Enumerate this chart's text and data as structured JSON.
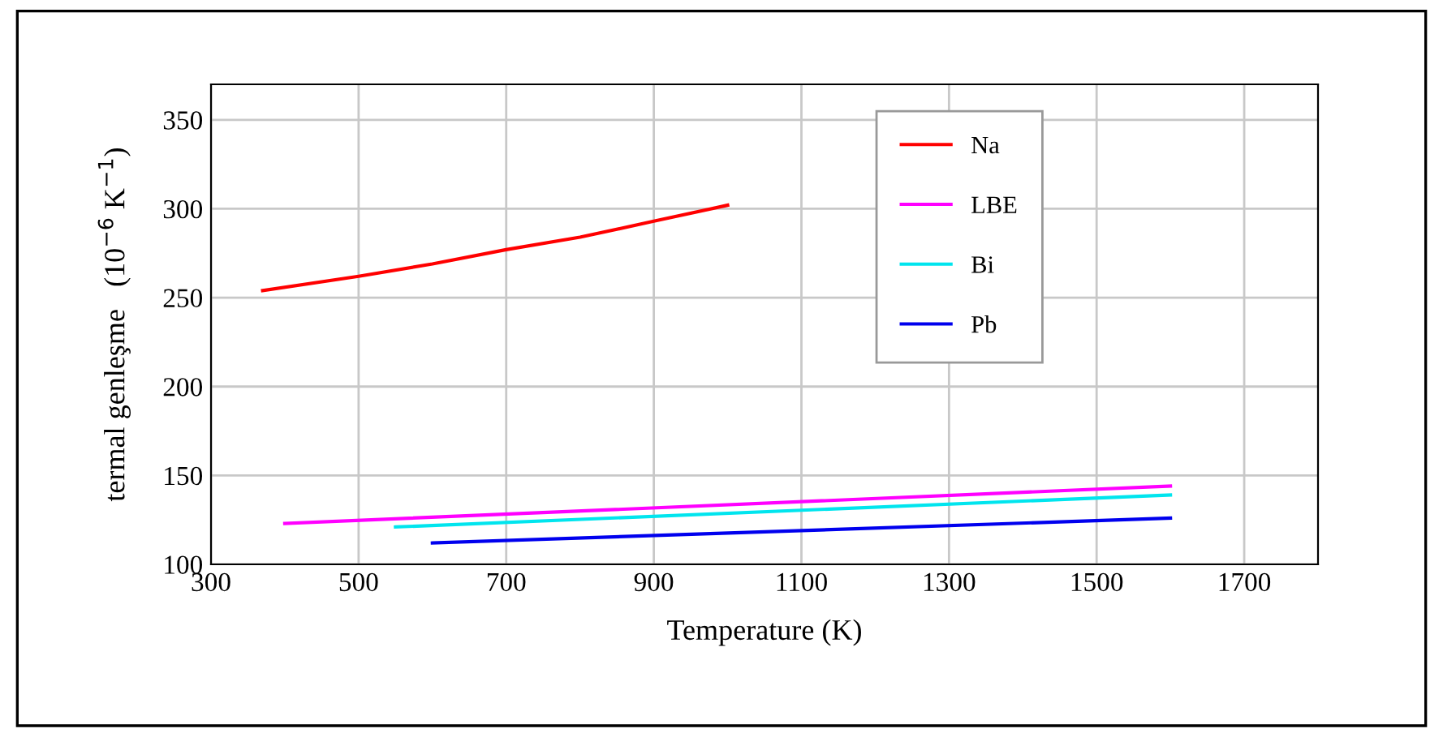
{
  "chart_data": {
    "type": "line",
    "xlabel": "Temperature (K)",
    "ylabel": "termal genleşme   (10$^{−6}$ K$^{−1}$)",
    "xlim": [
      300,
      1800
    ],
    "xticks": [
      300,
      500,
      700,
      900,
      1100,
      1300,
      1500,
      1700
    ],
    "ylim": [
      100,
      370
    ],
    "yticks": [
      100,
      150,
      200,
      250,
      300,
      350
    ],
    "grid": true,
    "legend": "top right",
    "marker": "none",
    "line_style": "solid",
    "series": [
      {
        "name": "Na",
        "color": "#ff0000",
        "x": [
          370,
          500,
          600,
          700,
          800,
          900,
          1000
        ],
        "values": [
          254,
          262,
          269,
          277,
          284,
          293,
          302
        ]
      },
      {
        "name": "LBE",
        "color": "#ff00ff",
        "x": [
          400,
          1600
        ],
        "values": [
          123,
          144
        ]
      },
      {
        "name": "Bi",
        "color": "#00e5ee",
        "x": [
          550,
          1600
        ],
        "values": [
          121,
          139
        ]
      },
      {
        "name": "Pb",
        "color": "#0000ee",
        "x": [
          600,
          1600
        ],
        "values": [
          112,
          126
        ]
      }
    ]
  }
}
